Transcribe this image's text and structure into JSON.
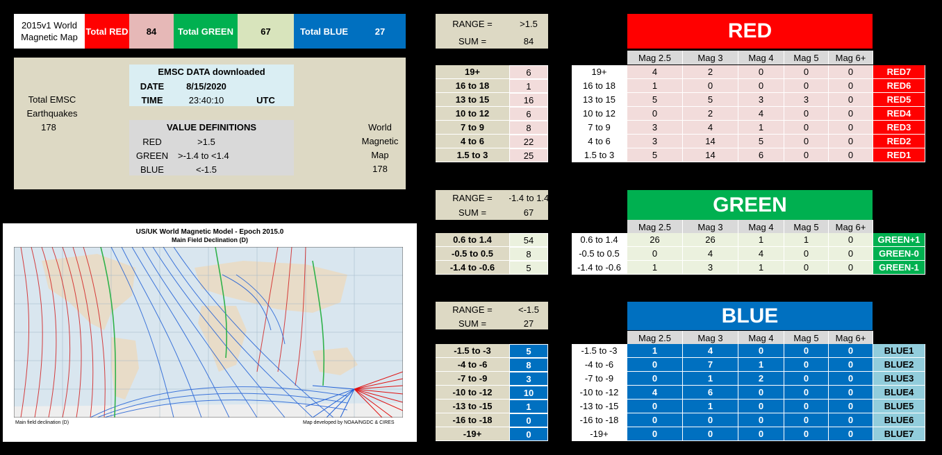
{
  "summary": {
    "title_line1": "2015v1 World",
    "title_line2": "Magnetic Map",
    "total_red_label": "Total RED",
    "total_red": "84",
    "total_green_label": "Total GREEN",
    "total_green": "67",
    "total_blue_label": "Total BLUE",
    "total_blue": "27"
  },
  "info": {
    "total_emsc_line1": "Total EMSC",
    "total_emsc_line2": "Earthquakes",
    "total_emsc_value": "178",
    "emsc_header": "EMSC DATA downloaded",
    "date_label": "DATE",
    "date_value": "8/15/2020",
    "time_label": "TIME",
    "time_value": "23:40:10",
    "time_zone": "UTC",
    "vd_header": "VALUE DEFINITIONS",
    "red_label": "RED",
    "red_def": ">1.5",
    "green_label": "GREEN",
    "green_def": ">-1.4  to  <1.4",
    "blue_label": "BLUE",
    "blue_def": "<-1.5",
    "wmm_line1": "World",
    "wmm_line2": "Magnetic",
    "wmm_line3": "Map",
    "wmm_value": "178"
  },
  "map": {
    "title": "US/UK World Magnetic Model - Epoch 2015.0",
    "subtitle": "Main Field Declination (D)",
    "footer_left": "Main field declination (D)",
    "footer_right": "Map developed by NOAA/NGDC & CIRES"
  },
  "colors": {
    "red": "#ff0000",
    "green": "#00b050",
    "blue": "#0070c0",
    "red_light": "#f2dcdb",
    "green_light": "#ebf1de",
    "blue_cell": "#0070c0",
    "blue_label": "#92cddc"
  },
  "mag_headers": [
    "Mag 2.5",
    "Mag 3",
    "Mag 4",
    "Mag 5",
    "Mag 6+"
  ],
  "red": {
    "title": "RED",
    "range_label": "RANGE =",
    "range_value": ">1.5",
    "sum_label": "SUM =",
    "sum_value": "84",
    "rows": [
      {
        "range": "19+",
        "count": "6",
        "vals": [
          "4",
          "2",
          "0",
          "0",
          "0"
        ],
        "code": "RED7"
      },
      {
        "range": "16 to 18",
        "count": "1",
        "vals": [
          "1",
          "0",
          "0",
          "0",
          "0"
        ],
        "code": "RED6"
      },
      {
        "range": "13 to 15",
        "count": "16",
        "vals": [
          "5",
          "5",
          "3",
          "3",
          "0"
        ],
        "code": "RED5"
      },
      {
        "range": "10 to 12",
        "count": "6",
        "vals": [
          "0",
          "2",
          "4",
          "0",
          "0"
        ],
        "code": "RED4"
      },
      {
        "range": "7 to 9",
        "count": "8",
        "vals": [
          "3",
          "4",
          "1",
          "0",
          "0"
        ],
        "code": "RED3"
      },
      {
        "range": "4 to 6",
        "count": "22",
        "vals": [
          "3",
          "14",
          "5",
          "0",
          "0"
        ],
        "code": "RED2"
      },
      {
        "range": "1.5 to 3",
        "count": "25",
        "vals": [
          "5",
          "14",
          "6",
          "0",
          "0"
        ],
        "code": "RED1"
      }
    ]
  },
  "green": {
    "title": "GREEN",
    "range_label": "RANGE =",
    "range_value": "-1.4 to 1.4",
    "sum_label": "SUM =",
    "sum_value": "67",
    "rows": [
      {
        "range": "0.6 to 1.4",
        "count": "54",
        "vals": [
          "26",
          "26",
          "1",
          "1",
          "0"
        ],
        "code": "GREEN+1"
      },
      {
        "range": "-0.5 to 0.5",
        "count": "8",
        "vals": [
          "0",
          "4",
          "4",
          "0",
          "0"
        ],
        "code": "GREEN-0"
      },
      {
        "range": "-1.4 to -0.6",
        "count": "5",
        "vals": [
          "1",
          "3",
          "1",
          "0",
          "0"
        ],
        "code": "GREEN-1"
      }
    ]
  },
  "blue": {
    "title": "BLUE",
    "range_label": "RANGE =",
    "range_value": "<-1.5",
    "sum_label": "SUM =",
    "sum_value": "27",
    "rows": [
      {
        "range": "-1.5 to -3",
        "count": "5",
        "vals": [
          "1",
          "4",
          "0",
          "0",
          "0"
        ],
        "code": "BLUE1"
      },
      {
        "range": "-4 to -6",
        "count": "8",
        "vals": [
          "0",
          "7",
          "1",
          "0",
          "0"
        ],
        "code": "BLUE2"
      },
      {
        "range": "-7 to -9",
        "count": "3",
        "vals": [
          "0",
          "1",
          "2",
          "0",
          "0"
        ],
        "code": "BLUE3"
      },
      {
        "range": "-10 to -12",
        "count": "10",
        "vals": [
          "4",
          "6",
          "0",
          "0",
          "0"
        ],
        "code": "BLUE4"
      },
      {
        "range": "-13 to -15",
        "count": "1",
        "vals": [
          "0",
          "1",
          "0",
          "0",
          "0"
        ],
        "code": "BLUE5"
      },
      {
        "range": "-16 to -18",
        "count": "0",
        "vals": [
          "0",
          "0",
          "0",
          "0",
          "0"
        ],
        "code": "BLUE6"
      },
      {
        "range": "-19+",
        "count": "0",
        "vals": [
          "0",
          "0",
          "0",
          "0",
          "0"
        ],
        "code": "BLUE7"
      }
    ]
  }
}
